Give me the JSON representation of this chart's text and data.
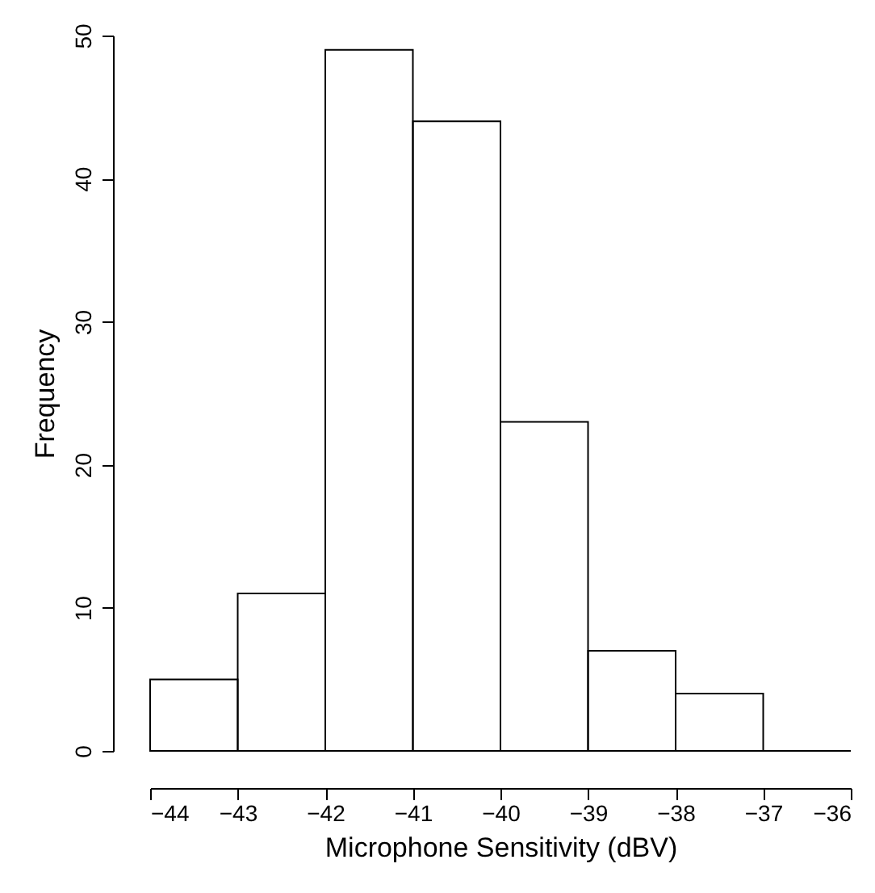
{
  "chart_data": {
    "type": "histogram",
    "xlabel": "Microphone Sensitivity (dBV)",
    "ylabel": "Frequency",
    "bins": [
      -44,
      -43,
      -42,
      -41,
      -40,
      -39,
      -38,
      -37,
      -36
    ],
    "values": [
      5,
      11,
      49,
      44,
      23,
      7,
      4,
      0
    ],
    "color": "#000000",
    "xlim": [
      -44,
      -36
    ],
    "xticks": [
      -44,
      -43,
      -42,
      -41,
      -40,
      -39,
      -38,
      -37,
      -36
    ],
    "ylim": [
      0,
      50
    ],
    "yticks": [
      0,
      10,
      20,
      30,
      40,
      50
    ]
  }
}
